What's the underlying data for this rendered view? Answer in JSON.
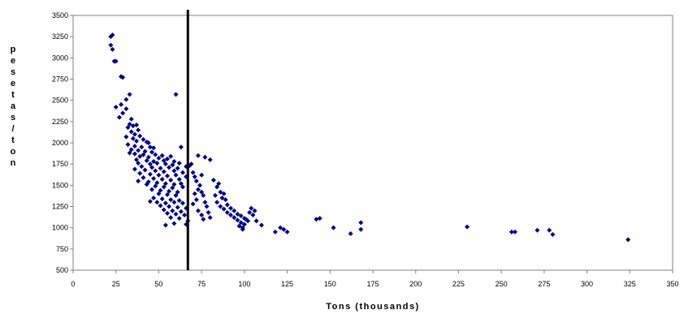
{
  "chart_data": {
    "type": "scatter",
    "title": "",
    "xlabel": "Tons (thousands)",
    "ylabel": "pesetas/ton",
    "xlim": [
      0,
      350
    ],
    "ylim": [
      500,
      3500
    ],
    "x_ticks": [
      0,
      25,
      50,
      75,
      100,
      125,
      150,
      175,
      200,
      225,
      250,
      275,
      300,
      325,
      350
    ],
    "y_ticks": [
      500,
      750,
      1000,
      1250,
      1500,
      1750,
      2000,
      2250,
      2500,
      2750,
      3000,
      3250,
      3500
    ],
    "grid": false,
    "legend": "none",
    "marker_color": "#00007f",
    "vertical_line": {
      "x": 67,
      "color": "#000000"
    },
    "series": [
      {
        "points": [
          [
            23,
            3270
          ],
          [
            22,
            3250
          ],
          [
            22,
            3150
          ],
          [
            23,
            3100
          ],
          [
            24,
            2960
          ],
          [
            25,
            2960
          ],
          [
            28,
            2780
          ],
          [
            29,
            2770
          ],
          [
            33,
            2570
          ],
          [
            31,
            2510
          ],
          [
            28,
            2450
          ],
          [
            25,
            2420
          ],
          [
            31,
            2400
          ],
          [
            29,
            2350
          ],
          [
            27,
            2300
          ],
          [
            34,
            2280
          ],
          [
            33,
            2220
          ],
          [
            35,
            2200
          ],
          [
            37,
            2210
          ],
          [
            32,
            2180
          ],
          [
            38,
            2150
          ],
          [
            34,
            2130
          ],
          [
            36,
            2100
          ],
          [
            39,
            2080
          ],
          [
            31,
            2070
          ],
          [
            35,
            2050
          ],
          [
            41,
            2040
          ],
          [
            37,
            2020
          ],
          [
            43,
            2010
          ],
          [
            44,
            2000
          ],
          [
            32,
            1980
          ],
          [
            36,
            1960
          ],
          [
            40,
            1950
          ],
          [
            45,
            1950
          ],
          [
            47,
            1940
          ],
          [
            34,
            1920
          ],
          [
            38,
            1910
          ],
          [
            42,
            1900
          ],
          [
            46,
            1890
          ],
          [
            33,
            1880
          ],
          [
            36,
            1870
          ],
          [
            41,
            1860
          ],
          [
            48,
            1860
          ],
          [
            52,
            1850
          ],
          [
            39,
            1840
          ],
          [
            44,
            1830
          ],
          [
            50,
            1820
          ],
          [
            55,
            1810
          ],
          [
            57,
            1840
          ],
          [
            37,
            1800
          ],
          [
            43,
            1790
          ],
          [
            47,
            1780
          ],
          [
            53,
            1790
          ],
          [
            59,
            1780
          ],
          [
            38,
            1760
          ],
          [
            45,
            1750
          ],
          [
            49,
            1760
          ],
          [
            54,
            1750
          ],
          [
            58,
            1740
          ],
          [
            62,
            1760
          ],
          [
            66,
            1720
          ],
          [
            40,
            1720
          ],
          [
            46,
            1710
          ],
          [
            51,
            1700
          ],
          [
            56,
            1710
          ],
          [
            61,
            1700
          ],
          [
            68,
            1730
          ],
          [
            36,
            1690
          ],
          [
            42,
            1680
          ],
          [
            48,
            1670
          ],
          [
            53,
            1660
          ],
          [
            59,
            1670
          ],
          [
            64,
            1650
          ],
          [
            39,
            1640
          ],
          [
            45,
            1630
          ],
          [
            50,
            1620
          ],
          [
            55,
            1610
          ],
          [
            60,
            1620
          ],
          [
            66,
            1600
          ],
          [
            41,
            1590
          ],
          [
            47,
            1580
          ],
          [
            52,
            1570
          ],
          [
            57,
            1560
          ],
          [
            62,
            1570
          ],
          [
            44,
            1540
          ],
          [
            49,
            1530
          ],
          [
            54,
            1520
          ],
          [
            59,
            1510
          ],
          [
            63,
            1520
          ],
          [
            38,
            1550
          ],
          [
            43,
            1510
          ],
          [
            48,
            1490
          ],
          [
            53,
            1480
          ],
          [
            58,
            1470
          ],
          [
            64,
            1480
          ],
          [
            46,
            1450
          ],
          [
            51,
            1440
          ],
          [
            56,
            1430
          ],
          [
            61,
            1420
          ],
          [
            50,
            1400
          ],
          [
            55,
            1390
          ],
          [
            60,
            1380
          ],
          [
            47,
            1350
          ],
          [
            52,
            1340
          ],
          [
            57,
            1330
          ],
          [
            62,
            1320
          ],
          [
            45,
            1310
          ],
          [
            49,
            1300
          ],
          [
            54,
            1290
          ],
          [
            59,
            1300
          ],
          [
            64,
            1290
          ],
          [
            51,
            1260
          ],
          [
            56,
            1250
          ],
          [
            61,
            1240
          ],
          [
            66,
            1230
          ],
          [
            53,
            1210
          ],
          [
            58,
            1200
          ],
          [
            63,
            1190
          ],
          [
            55,
            1170
          ],
          [
            60,
            1160
          ],
          [
            65,
            1150
          ],
          [
            57,
            1120
          ],
          [
            62,
            1110
          ],
          [
            67,
            1080
          ],
          [
            59,
            1050
          ],
          [
            54,
            1030
          ],
          [
            66,
            1040
          ],
          [
            60,
            2570
          ],
          [
            63,
            1950
          ],
          [
            69,
            1750
          ],
          [
            70,
            1650
          ],
          [
            71,
            1600
          ],
          [
            72,
            1550
          ],
          [
            74,
            1500
          ],
          [
            73,
            1450
          ],
          [
            75,
            1420
          ],
          [
            71,
            1400
          ],
          [
            76,
            1380
          ],
          [
            72,
            1330
          ],
          [
            77,
            1300
          ],
          [
            70,
            1280
          ],
          [
            78,
            1250
          ],
          [
            73,
            1200
          ],
          [
            79,
            1180
          ],
          [
            75,
            1150
          ],
          [
            80,
            1120
          ],
          [
            76,
            1100
          ],
          [
            73,
            1850
          ],
          [
            77,
            1830
          ],
          [
            80,
            1800
          ],
          [
            75,
            1620
          ],
          [
            82,
            1560
          ],
          [
            85,
            1520
          ],
          [
            84,
            1480
          ],
          [
            86,
            1420
          ],
          [
            88,
            1400
          ],
          [
            83,
            1380
          ],
          [
            87,
            1350
          ],
          [
            89,
            1330
          ],
          [
            84,
            1300
          ],
          [
            90,
            1270
          ],
          [
            86,
            1250
          ],
          [
            92,
            1230
          ],
          [
            88,
            1220
          ],
          [
            94,
            1200
          ],
          [
            90,
            1180
          ],
          [
            96,
            1160
          ],
          [
            92,
            1150
          ],
          [
            98,
            1140
          ],
          [
            94,
            1120
          ],
          [
            100,
            1110
          ],
          [
            96,
            1090
          ],
          [
            102,
            1080
          ],
          [
            98,
            1060
          ],
          [
            100,
            1040
          ],
          [
            97,
            1020
          ],
          [
            99,
            980
          ],
          [
            104,
            1230
          ],
          [
            106,
            1200
          ],
          [
            103,
            1180
          ],
          [
            105,
            1150
          ],
          [
            101,
            1100
          ],
          [
            107,
            1080
          ],
          [
            110,
            1030
          ],
          [
            99,
            1000
          ],
          [
            118,
            950
          ],
          [
            121,
            1000
          ],
          [
            123,
            980
          ],
          [
            125,
            950
          ],
          [
            142,
            1100
          ],
          [
            144,
            1110
          ],
          [
            152,
            1000
          ],
          [
            162,
            930
          ],
          [
            168,
            1060
          ],
          [
            168,
            980
          ],
          [
            230,
            1010
          ],
          [
            256,
            950
          ],
          [
            258,
            950
          ],
          [
            271,
            970
          ],
          [
            278,
            970
          ],
          [
            280,
            920
          ],
          [
            324,
            860
          ]
        ]
      }
    ]
  }
}
